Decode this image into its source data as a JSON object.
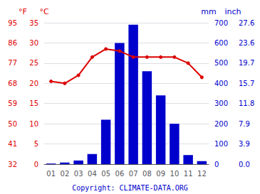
{
  "chart_data": {
    "type": "bar",
    "categories": [
      "01",
      "02",
      "03",
      "04",
      "05",
      "06",
      "07",
      "08",
      "09",
      "10",
      "11",
      "12"
    ],
    "series": [
      {
        "type": "bar",
        "color": "#0000cc",
        "axis": "y",
        "values": [
          3,
          8,
          18,
          50,
          220,
          600,
          690,
          460,
          340,
          200,
          45,
          15
        ]
      },
      {
        "type": "line",
        "color": "#dd0000",
        "marker": "circle",
        "axis": "y2",
        "values": [
          20.5,
          20.0,
          22.0,
          26.5,
          28.5,
          28.0,
          26.5,
          26.5,
          26.5,
          26.5,
          25.0,
          21.5
        ]
      }
    ],
    "y_label": "mm",
    "ylim": [
      0,
      700
    ],
    "yticks": [
      0,
      100,
      200,
      300,
      400,
      500,
      600,
      700
    ],
    "y2_label": "°C",
    "y2lim": [
      0,
      35
    ],
    "y2ticks": [
      0,
      5,
      10,
      15,
      20,
      25,
      30,
      35
    ],
    "y3_label": "°F",
    "y3lim": [
      32,
      95
    ],
    "y3ticks": [
      32,
      41,
      50,
      59,
      68,
      77,
      86,
      95
    ],
    "y4_label": "inch",
    "y4lim": [
      0,
      700
    ],
    "y4ticks": [
      {
        "value": 0,
        "label": "0.0"
      },
      {
        "value": 100,
        "label": "3.9"
      },
      {
        "value": 200,
        "label": "7.9"
      },
      {
        "value": 300,
        "label": "11.8"
      },
      {
        "value": 400,
        "label": "15.7"
      },
      {
        "value": 500,
        "label": "19.7"
      },
      {
        "value": 600,
        "label": "23.6"
      },
      {
        "value": 700,
        "label": "27.6"
      }
    ],
    "grid": true,
    "annotations": [
      "Copyright: CLIMATE-DATA.ORG"
    ]
  }
}
